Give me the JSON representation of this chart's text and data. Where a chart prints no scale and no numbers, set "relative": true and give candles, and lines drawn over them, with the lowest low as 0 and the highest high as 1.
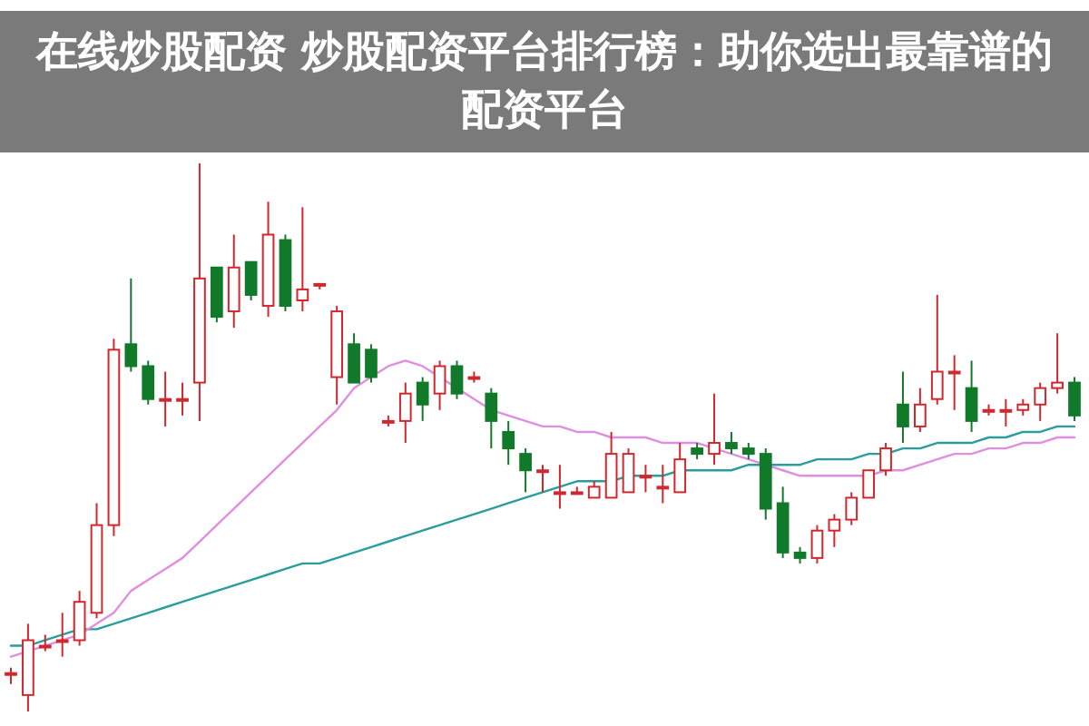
{
  "chart_data": {
    "type": "candlestick",
    "title": "在线炒股配资 炒股配资平台排行榜：助你选出最靠谱的配资平台",
    "relative": true,
    "categories": [
      null,
      null,
      null,
      null,
      null,
      null,
      null,
      null,
      null,
      null,
      null,
      null,
      null,
      null,
      null,
      null,
      null,
      null,
      null,
      null,
      null,
      null,
      null,
      null,
      null,
      null,
      null,
      null,
      null,
      null,
      null,
      null,
      null,
      null,
      null,
      null,
      null,
      null,
      null,
      null,
      null,
      null,
      null,
      null,
      null,
      null,
      null,
      null,
      null,
      null,
      null,
      null,
      null,
      null,
      null,
      null,
      null,
      null,
      null,
      null,
      null,
      null,
      null
    ],
    "ohlc": [
      [
        0.07,
        0.08,
        0.05,
        0.07
      ],
      [
        0.03,
        0.16,
        0,
        0.13
      ],
      [
        0.12,
        0.14,
        0.11,
        0.12
      ],
      [
        0.13,
        0.18,
        0.1,
        0.13
      ],
      [
        0.13,
        0.22,
        0.12,
        0.2
      ],
      [
        0.18,
        0.38,
        0.17,
        0.34
      ],
      [
        0.34,
        0.68,
        0.32,
        0.66
      ],
      [
        0.67,
        0.79,
        0.62,
        0.63
      ],
      [
        0.63,
        0.64,
        0.56,
        0.57
      ],
      [
        0.57,
        0.62,
        0.52,
        0.57
      ],
      [
        0.57,
        0.6,
        0.54,
        0.57
      ],
      [
        0.6,
        1.0,
        0.53,
        0.79
      ],
      [
        0.81,
        0.81,
        0.71,
        0.72
      ],
      [
        0.73,
        0.87,
        0.7,
        0.81
      ],
      [
        0.82,
        0.82,
        0.75,
        0.76
      ],
      [
        0.74,
        0.93,
        0.72,
        0.87
      ],
      [
        0.86,
        0.87,
        0.73,
        0.74
      ],
      [
        0.75,
        0.92,
        0.73,
        0.77
      ],
      [
        0.78,
        0.78,
        0.77,
        0.78
      ],
      [
        0.61,
        0.74,
        0.56,
        0.73
      ],
      [
        0.67,
        0.69,
        0.6,
        0.6
      ],
      [
        0.66,
        0.67,
        0.6,
        0.61
      ],
      [
        0.53,
        0.54,
        0.52,
        0.53
      ],
      [
        0.53,
        0.6,
        0.49,
        0.58
      ],
      [
        0.6,
        0.61,
        0.53,
        0.56
      ],
      [
        0.58,
        0.64,
        0.55,
        0.63
      ],
      [
        0.63,
        0.64,
        0.57,
        0.58
      ],
      [
        0.61,
        0.62,
        0.6,
        0.61
      ],
      [
        0.58,
        0.59,
        0.48,
        0.53
      ],
      [
        0.51,
        0.53,
        0.45,
        0.48
      ],
      [
        0.47,
        0.48,
        0.4,
        0.44
      ],
      [
        0.44,
        0.45,
        0.4,
        0.44
      ],
      [
        0.4,
        0.45,
        0.37,
        0.4
      ],
      [
        0.4,
        0.41,
        0.4,
        0.4
      ],
      [
        0.39,
        0.42,
        0.39,
        0.41
      ],
      [
        0.39,
        0.51,
        0.39,
        0.47
      ],
      [
        0.4,
        0.48,
        0.4,
        0.47
      ],
      [
        0.43,
        0.45,
        0.4,
        0.43
      ],
      [
        0.41,
        0.45,
        0.38,
        0.41
      ],
      [
        0.4,
        0.49,
        0.4,
        0.46
      ],
      [
        0.48,
        0.49,
        0.46,
        0.47
      ],
      [
        0.47,
        0.58,
        0.45,
        0.49
      ],
      [
        0.49,
        0.51,
        0.47,
        0.48
      ],
      [
        0.48,
        0.49,
        0.46,
        0.47
      ],
      [
        0.47,
        0.48,
        0.35,
        0.37
      ],
      [
        0.38,
        0.41,
        0.28,
        0.29
      ],
      [
        0.29,
        0.3,
        0.27,
        0.28
      ],
      [
        0.28,
        0.34,
        0.27,
        0.33
      ],
      [
        0.33,
        0.36,
        0.3,
        0.35
      ],
      [
        0.35,
        0.4,
        0.34,
        0.39
      ],
      [
        0.39,
        0.44,
        0.39,
        0.44
      ],
      [
        0.44,
        0.49,
        0.43,
        0.48
      ],
      [
        0.56,
        0.62,
        0.49,
        0.52
      ],
      [
        0.52,
        0.59,
        0.51,
        0.56
      ],
      [
        0.57,
        0.76,
        0.56,
        0.62
      ],
      [
        0.62,
        0.65,
        0.55,
        0.62
      ],
      [
        0.59,
        0.64,
        0.51,
        0.53
      ],
      [
        0.55,
        0.56,
        0.54,
        0.55
      ],
      [
        0.55,
        0.57,
        0.52,
        0.55
      ],
      [
        0.55,
        0.57,
        0.54,
        0.56
      ],
      [
        0.56,
        0.6,
        0.53,
        0.59
      ],
      [
        0.59,
        0.69,
        0.58,
        0.6
      ],
      [
        0.6,
        0.61,
        0.53,
        0.54
      ]
    ],
    "series": [
      {
        "type": "line",
        "color": "#2a9d9d",
        "values": [
          0.12,
          0.12,
          0.13,
          0.14,
          0.15,
          0.15,
          0.16,
          0.17,
          0.18,
          0.19,
          0.2,
          0.21,
          0.22,
          0.23,
          0.24,
          0.25,
          0.26,
          0.27,
          0.27,
          0.28,
          0.29,
          0.3,
          0.31,
          0.32,
          0.33,
          0.34,
          0.35,
          0.36,
          0.37,
          0.38,
          0.39,
          0.4,
          0.41,
          0.42,
          0.42,
          0.42,
          0.43,
          0.43,
          0.43,
          0.44,
          0.44,
          0.44,
          0.44,
          0.45,
          0.45,
          0.45,
          0.45,
          0.46,
          0.46,
          0.46,
          0.47,
          0.47,
          0.48,
          0.48,
          0.49,
          0.49,
          0.49,
          0.5,
          0.5,
          0.51,
          0.51,
          0.52,
          0.52
        ]
      },
      {
        "type": "line",
        "color": "#e08ee0",
        "values": [
          0.1,
          0.11,
          0.12,
          0.13,
          0.14,
          0.16,
          0.18,
          0.22,
          0.24,
          0.26,
          0.28,
          0.31,
          0.34,
          0.37,
          0.4,
          0.43,
          0.46,
          0.49,
          0.52,
          0.55,
          0.59,
          0.61,
          0.63,
          0.64,
          0.63,
          0.61,
          0.59,
          0.57,
          0.55,
          0.54,
          0.53,
          0.52,
          0.52,
          0.51,
          0.51,
          0.5,
          0.5,
          0.5,
          0.49,
          0.49,
          0.49,
          0.48,
          0.47,
          0.46,
          0.45,
          0.44,
          0.43,
          0.43,
          0.43,
          0.43,
          0.43,
          0.44,
          0.44,
          0.45,
          0.46,
          0.47,
          0.47,
          0.48,
          0.48,
          0.49,
          0.49,
          0.5,
          0.5
        ]
      }
    ]
  }
}
